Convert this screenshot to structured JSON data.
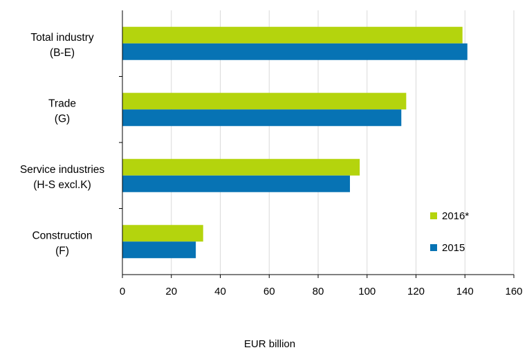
{
  "chart_data": {
    "type": "bar",
    "orientation": "horizontal",
    "categories": [
      [
        "Total industry",
        "(B-E)"
      ],
      [
        "Trade",
        "(G)"
      ],
      [
        "Service industries",
        "(H-S excl.K)"
      ],
      [
        "Construction",
        "(F)"
      ]
    ],
    "series": [
      {
        "name": "2016*",
        "color": "#b4d40d",
        "values": [
          139,
          116,
          97,
          33
        ]
      },
      {
        "name": "2015",
        "color": "#0773b4",
        "values": [
          141,
          114,
          93,
          30
        ]
      }
    ],
    "xlabel": "EUR billion",
    "xlim": [
      0,
      160
    ],
    "xticks": [
      "0",
      "20",
      "40",
      "60",
      "80",
      "100",
      "120",
      "140",
      "160"
    ],
    "grid": true,
    "legend_position": "lower-right"
  }
}
